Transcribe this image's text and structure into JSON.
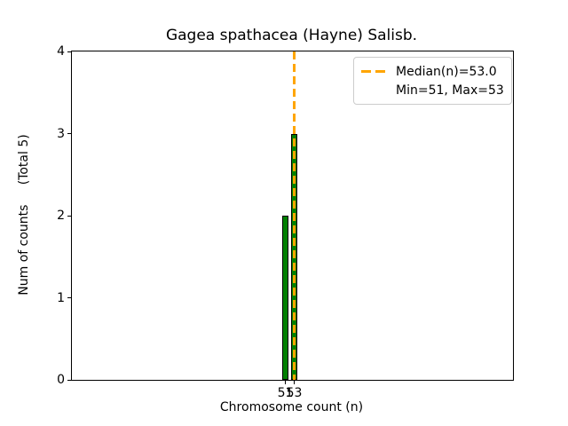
{
  "chart_data": {
    "type": "bar",
    "title": "Gagea spathacea (Hayne) Salisb.",
    "xlabel": "Chromosome count (n)",
    "ylabel": "Num of counts     (Total 5)",
    "categories": [
      51,
      53
    ],
    "values": [
      2,
      3
    ],
    "total_counts": 5,
    "median": 53.0,
    "min": 51,
    "max": 53,
    "xlim": [
      2.6,
      102.6
    ],
    "ylim": [
      0,
      4
    ],
    "xticks": [
      "51",
      "53"
    ],
    "yticks": [
      "0",
      "1",
      "2",
      "3",
      "4"
    ],
    "grid": false,
    "legend_position": "upper right",
    "legend_labels": [
      "Median(n)=53.0",
      "Min=51, Max=53"
    ],
    "colors": {
      "bar_fill": "#008000",
      "bar_edge": "#000000",
      "median_line": "#FFA500",
      "axis": "#000000",
      "text": "#000000",
      "legend_border": "#cccccc",
      "background": "#ffffff"
    }
  }
}
